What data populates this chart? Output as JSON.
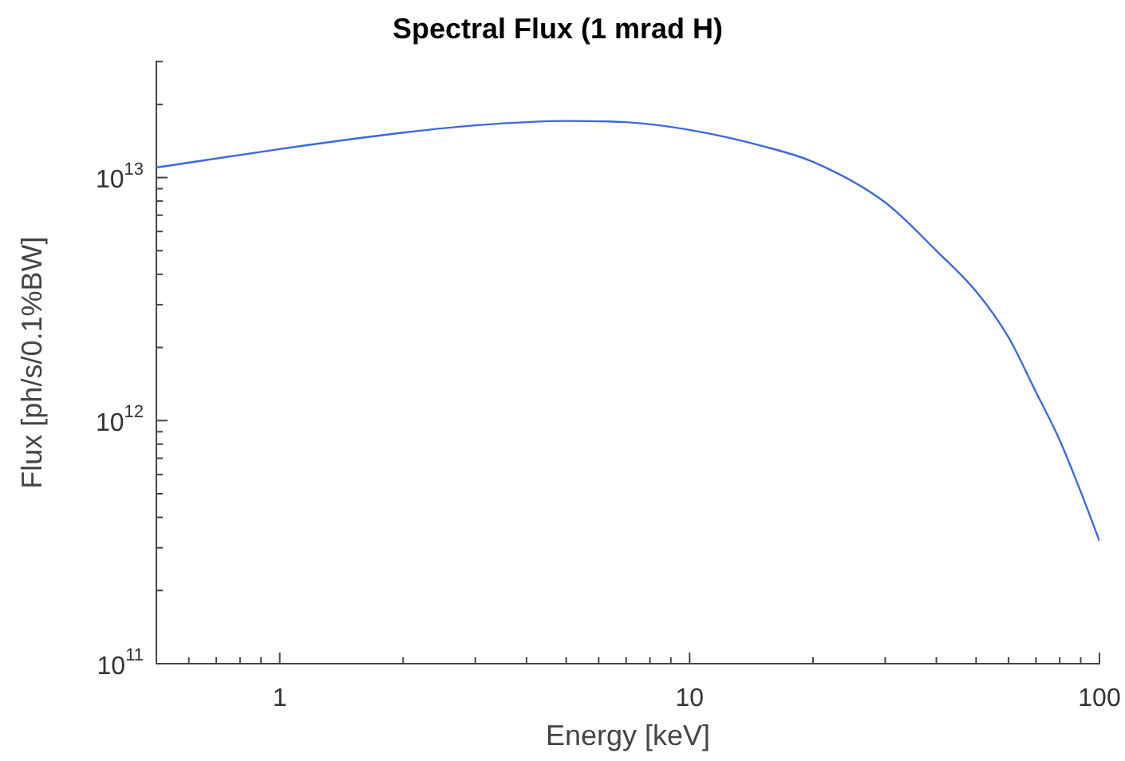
{
  "chart_data": {
    "type": "line",
    "title": "Spectral Flux (1 mrad H)",
    "xlabel": "Energy [keV]",
    "ylabel": "Flux [ph/s/0.1%BW]",
    "x": [
      0.5,
      1,
      2,
      3,
      5,
      7,
      10,
      15,
      20,
      30,
      40,
      50,
      60,
      70,
      80,
      90,
      100
    ],
    "series": [
      {
        "color": "#3b68e0",
        "values": [
          11000000000000.0,
          13100000000000.0,
          15300000000000.0,
          16400000000000.0,
          17100000000000.0,
          16900000000000.0,
          15700000000000.0,
          13500000000000.0,
          11600000000000.0,
          7900000000000.0,
          5000000000000.0,
          3400000000000.0,
          2200000000000.0,
          1310000000000.0,
          830000000000.0,
          510000000000.0,
          320000000000.0
        ]
      }
    ],
    "log": "xy",
    "xlim": [
      0.5,
      100
    ],
    "ylim": [
      100000000000.0,
      30000000000000.0
    ],
    "xticks": [
      {
        "value": 0.6,
        "label": null
      },
      {
        "value": 0.7,
        "label": null
      },
      {
        "value": 0.8,
        "label": null
      },
      {
        "value": 0.9,
        "label": null
      },
      1,
      {
        "value": 2,
        "label": null
      },
      {
        "value": 3,
        "label": null
      },
      {
        "value": 4,
        "label": null
      },
      {
        "value": 5,
        "label": null
      },
      {
        "value": 6,
        "label": null
      },
      {
        "value": 7,
        "label": null
      },
      {
        "value": 8,
        "label": null
      },
      {
        "value": 9,
        "label": null
      },
      10,
      {
        "value": 20,
        "label": null
      },
      {
        "value": 30,
        "label": null
      },
      {
        "value": 40,
        "label": null
      },
      {
        "value": 50,
        "label": null
      },
      {
        "value": 60,
        "label": null
      },
      {
        "value": 70,
        "label": null
      },
      {
        "value": 80,
        "label": null
      },
      {
        "value": 90,
        "label": null
      },
      100
    ],
    "yticks": [
      {
        "value": 100000000000.0,
        "label": "10$^{11}$"
      },
      {
        "value": 200000000000.0,
        "label": null
      },
      {
        "value": 300000000000.0,
        "label": null
      },
      {
        "value": 400000000000.0,
        "label": null
      },
      {
        "value": 500000000000.0,
        "label": null
      },
      {
        "value": 600000000000.0,
        "label": null
      },
      {
        "value": 700000000000.0,
        "label": null
      },
      {
        "value": 800000000000.0,
        "label": null
      },
      {
        "value": 900000000000.0,
        "label": null
      },
      {
        "value": 1000000000000.0,
        "label": "10$^{12}$"
      },
      {
        "value": 2000000000000.0,
        "label": null
      },
      {
        "value": 3000000000000.0,
        "label": null
      },
      {
        "value": 4000000000000.0,
        "label": null
      },
      {
        "value": 5000000000000.0,
        "label": null
      },
      {
        "value": 6000000000000.0,
        "label": null
      },
      {
        "value": 7000000000000.0,
        "label": null
      },
      {
        "value": 8000000000000.0,
        "label": null
      },
      {
        "value": 9000000000000.0,
        "label": null
      },
      {
        "value": 10000000000000.0,
        "label": "10$^{13}$"
      },
      {
        "value": 20000000000000.0,
        "label": null
      },
      {
        "value": 30000000000000.0,
        "label": null
      }
    ],
    "grid": false,
    "legend": false,
    "marker": "none",
    "line_style": "solid"
  }
}
